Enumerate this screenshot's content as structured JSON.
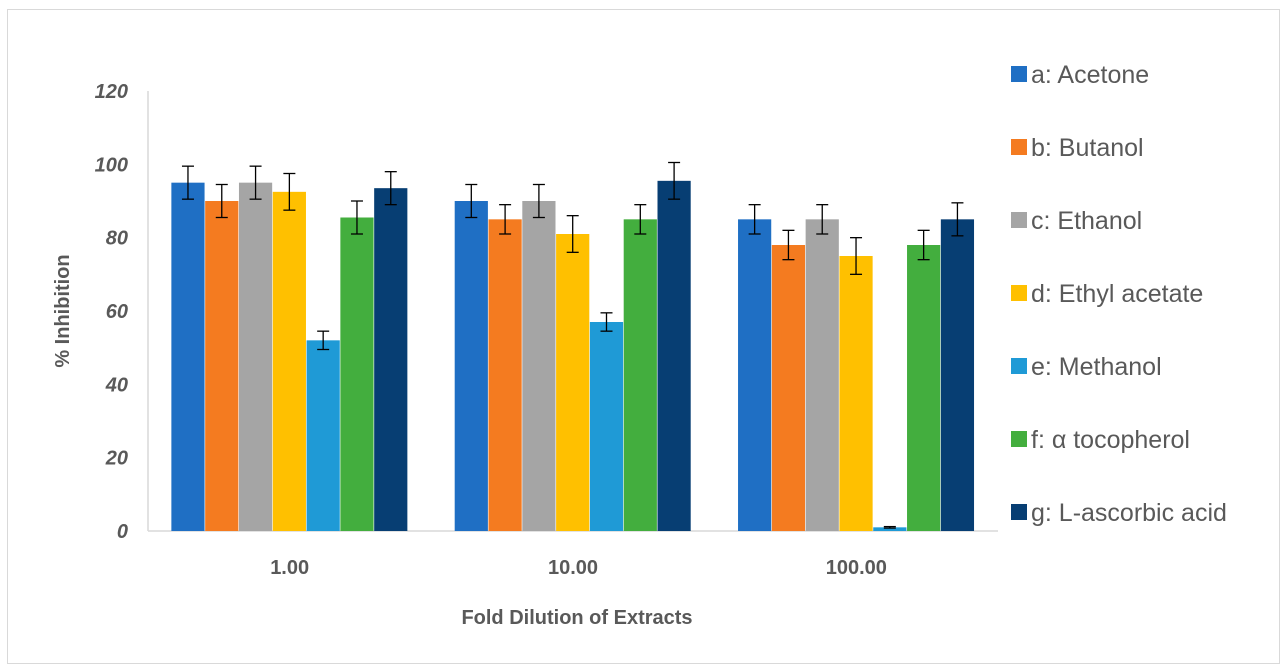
{
  "chart_data": {
    "type": "bar",
    "title": "",
    "xlabel": "Fold Dilution of Extracts",
    "ylabel": "% Inhibition",
    "categories": [
      "1.00",
      "10.00",
      "100.00"
    ],
    "yticks": [
      "0",
      "20",
      "40",
      "60",
      "80",
      "100",
      "120"
    ],
    "ylim": [
      0,
      120
    ],
    "grid": false,
    "legend_position": "right",
    "series": [
      {
        "name": "a: Acetone",
        "color": "#1f6fc4",
        "values": [
          95,
          90,
          85
        ],
        "errors": [
          4.5,
          4.5,
          4
        ]
      },
      {
        "name": "b: Butanol",
        "color": "#f47b20",
        "values": [
          90,
          85,
          78
        ],
        "errors": [
          4.5,
          4,
          4
        ]
      },
      {
        "name": "c: Ethanol",
        "color": "#a5a5a5",
        "values": [
          95,
          90,
          85
        ],
        "errors": [
          4.5,
          4.5,
          4
        ]
      },
      {
        "name": "d: Ethyl acetate",
        "color": "#ffc000",
        "values": [
          92.5,
          81,
          75
        ],
        "errors": [
          5,
          5,
          5
        ]
      },
      {
        "name": "e: Methanol",
        "color": "#1f9ad6",
        "values": [
          52,
          57,
          1
        ],
        "errors": [
          2.5,
          2.5,
          0.2
        ]
      },
      {
        "name": "f: α tocopherol",
        "color": "#43ae3e",
        "values": [
          85.5,
          85,
          78
        ],
        "errors": [
          4.5,
          4,
          4
        ]
      },
      {
        "name": "g: L-ascorbic acid",
        "color": "#073e73",
        "values": [
          93.5,
          95.5,
          85
        ],
        "errors": [
          4.5,
          5,
          4.5
        ]
      }
    ]
  }
}
